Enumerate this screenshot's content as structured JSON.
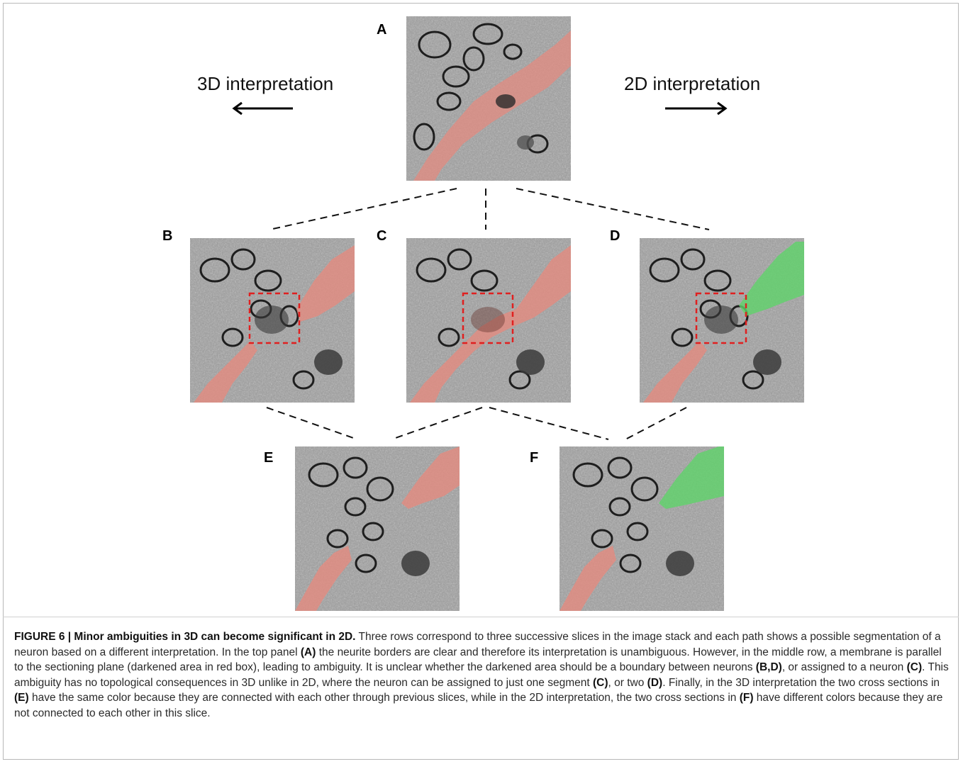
{
  "figure": {
    "panels": [
      "A",
      "B",
      "C",
      "D",
      "E",
      "F"
    ],
    "label_3d": "3D interpretation",
    "label_2d": "2D interpretation",
    "colors": {
      "neuron_red": "#e38b80",
      "neuron_green": "#5fd36a",
      "box_red": "#e02020"
    },
    "caption": {
      "heading": "FIGURE 6 | Minor ambiguities in 3D can become significant in 2D.",
      "t1": " Three rows correspond to three successive slices in the image stack and each path shows a possible segmentation of a neuron based on a different interpretation. In the top panel ",
      "r1": "(A)",
      "t2": " the neurite borders are clear and therefore its interpretation is unambiguous. However, in the middle row, a membrane is parallel to the sectioning plane (darkened area in red box), leading to ambiguity. It is unclear whether the darkened area should be a boundary between neurons ",
      "r2": "(B,D)",
      "t3": ", or assigned to a neuron ",
      "r3": "(C)",
      "t4": ". This ambiguity has no topological consequences in 3D unlike in 2D, where the neuron can be assigned to just one segment ",
      "r4": "(C)",
      "t5": ", or two ",
      "r5": "(D)",
      "t6": ". Finally, in the 3D interpretation the two cross sections in ",
      "r6": "(E)",
      "t7": " have the same color because they are connected with each other through previous slices, while in the 2D interpretation, the two cross sections in ",
      "r7": "(F)",
      "t8": " have different colors because they are not connected to each other in this slice."
    }
  }
}
